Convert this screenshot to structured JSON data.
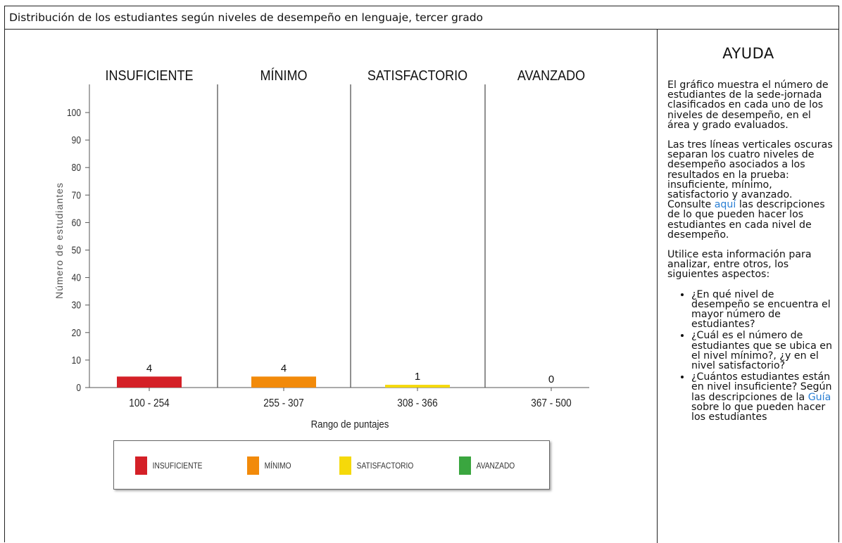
{
  "header": {
    "title": "Distribución de los estudiantes según niveles de desempeño en lenguaje, tercer grado"
  },
  "help": {
    "title": "AYUDA",
    "p1": "El gráfico muestra el número de estudiantes de la sede-jornada clasificados en cada uno de los niveles de desempeño, en el área y grado evaluados.",
    "p2_before": "Las tres líneas verticales oscuras separan los cuatro niveles de desempeño asociados a los resultados en la prueba: insuficiente, mínimo, satisfactorio y avanzado. Consulte ",
    "p2_link": "aquí",
    "p2_after": " las descripciones de lo que pueden hacer los estudiantes en cada nivel de desempeño.",
    "p3": "Utilice esta información para analizar, entre otros, los siguientes aspectos:",
    "bullet1": "¿En qué nivel de desempeño se encuentra el mayor número de estudiantes?",
    "bullet2": "¿Cuál es el número de estudiantes que se ubica en el nivel mínimo?, ¿y en el nivel satisfactorio?",
    "bullet3_before": "¿Cuántos estudiantes están en nivel insuficiente? Según las descripciones de la ",
    "bullet3_link": "Guía",
    "bullet3_after": " sobre lo que pueden hacer los estudiantes"
  },
  "chart_data": {
    "type": "bar",
    "categories": [
      "100 - 254",
      "255 - 307",
      "308 - 366",
      "367 - 500"
    ],
    "levels": [
      "INSUFICIENTE",
      "MÍNIMO",
      "SATISFACTORIO",
      "AVANZADO"
    ],
    "values": [
      4,
      4,
      1,
      0
    ],
    "colors": [
      "#d42027",
      "#f28a0a",
      "#f5d90a",
      "#3aa63f"
    ],
    "xlabel": "Rango de puntajes",
    "ylabel": "Número de estudiantes",
    "ylim": [
      0,
      100
    ],
    "yticks": [
      0,
      10,
      20,
      30,
      40,
      50,
      60,
      70,
      80,
      90,
      100
    ],
    "legend": [
      "INSUFICIENTE",
      "MÍNIMO",
      "SATISFACTORIO",
      "AVANZADO"
    ],
    "legend_position": "bottom",
    "grid": false
  }
}
